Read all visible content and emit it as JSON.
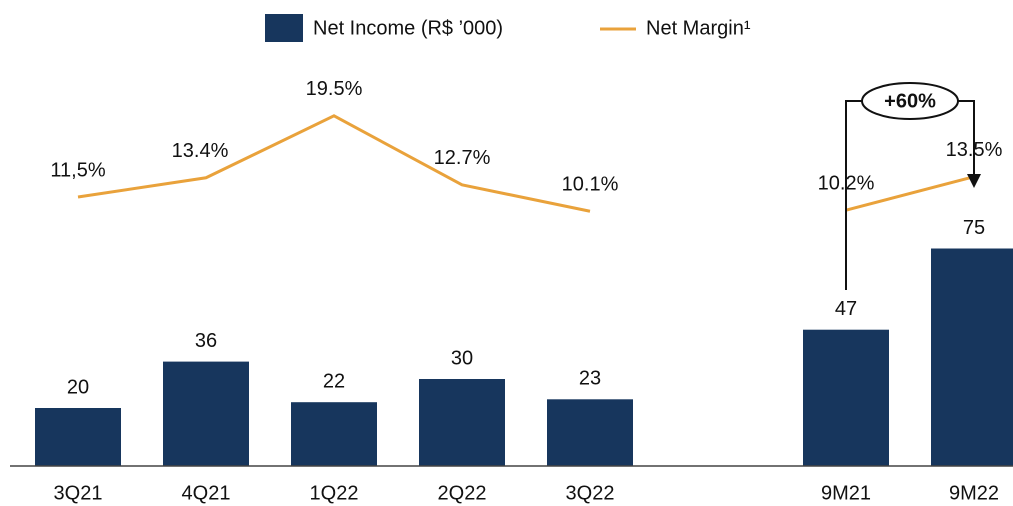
{
  "chart_data": {
    "type": "bar",
    "categories": [
      "3Q21",
      "4Q21",
      "1Q22",
      "2Q22",
      "3Q22",
      null,
      "9M21",
      "9M22"
    ],
    "series": [
      {
        "name": "Net Income (R$ ’000)",
        "type": "bar",
        "color": "#17365d",
        "values": [
          20,
          36,
          22,
          30,
          23,
          null,
          47,
          75
        ]
      },
      {
        "name": "Net Margin¹",
        "type": "line",
        "axis": "y2",
        "color": "#e9a23b",
        "values": [
          11.5,
          13.4,
          19.5,
          12.7,
          10.1,
          null,
          10.2,
          13.5
        ],
        "value_labels": [
          "11,5%",
          "13.4%",
          "19.5%",
          "12.7%",
          "10.1%",
          null,
          "10.2%",
          "13.5%"
        ]
      }
    ],
    "ylim": [
      0,
      140
    ],
    "y2lim": [
      -15,
      25
    ],
    "annotation": "+60%",
    "legend": "top"
  }
}
